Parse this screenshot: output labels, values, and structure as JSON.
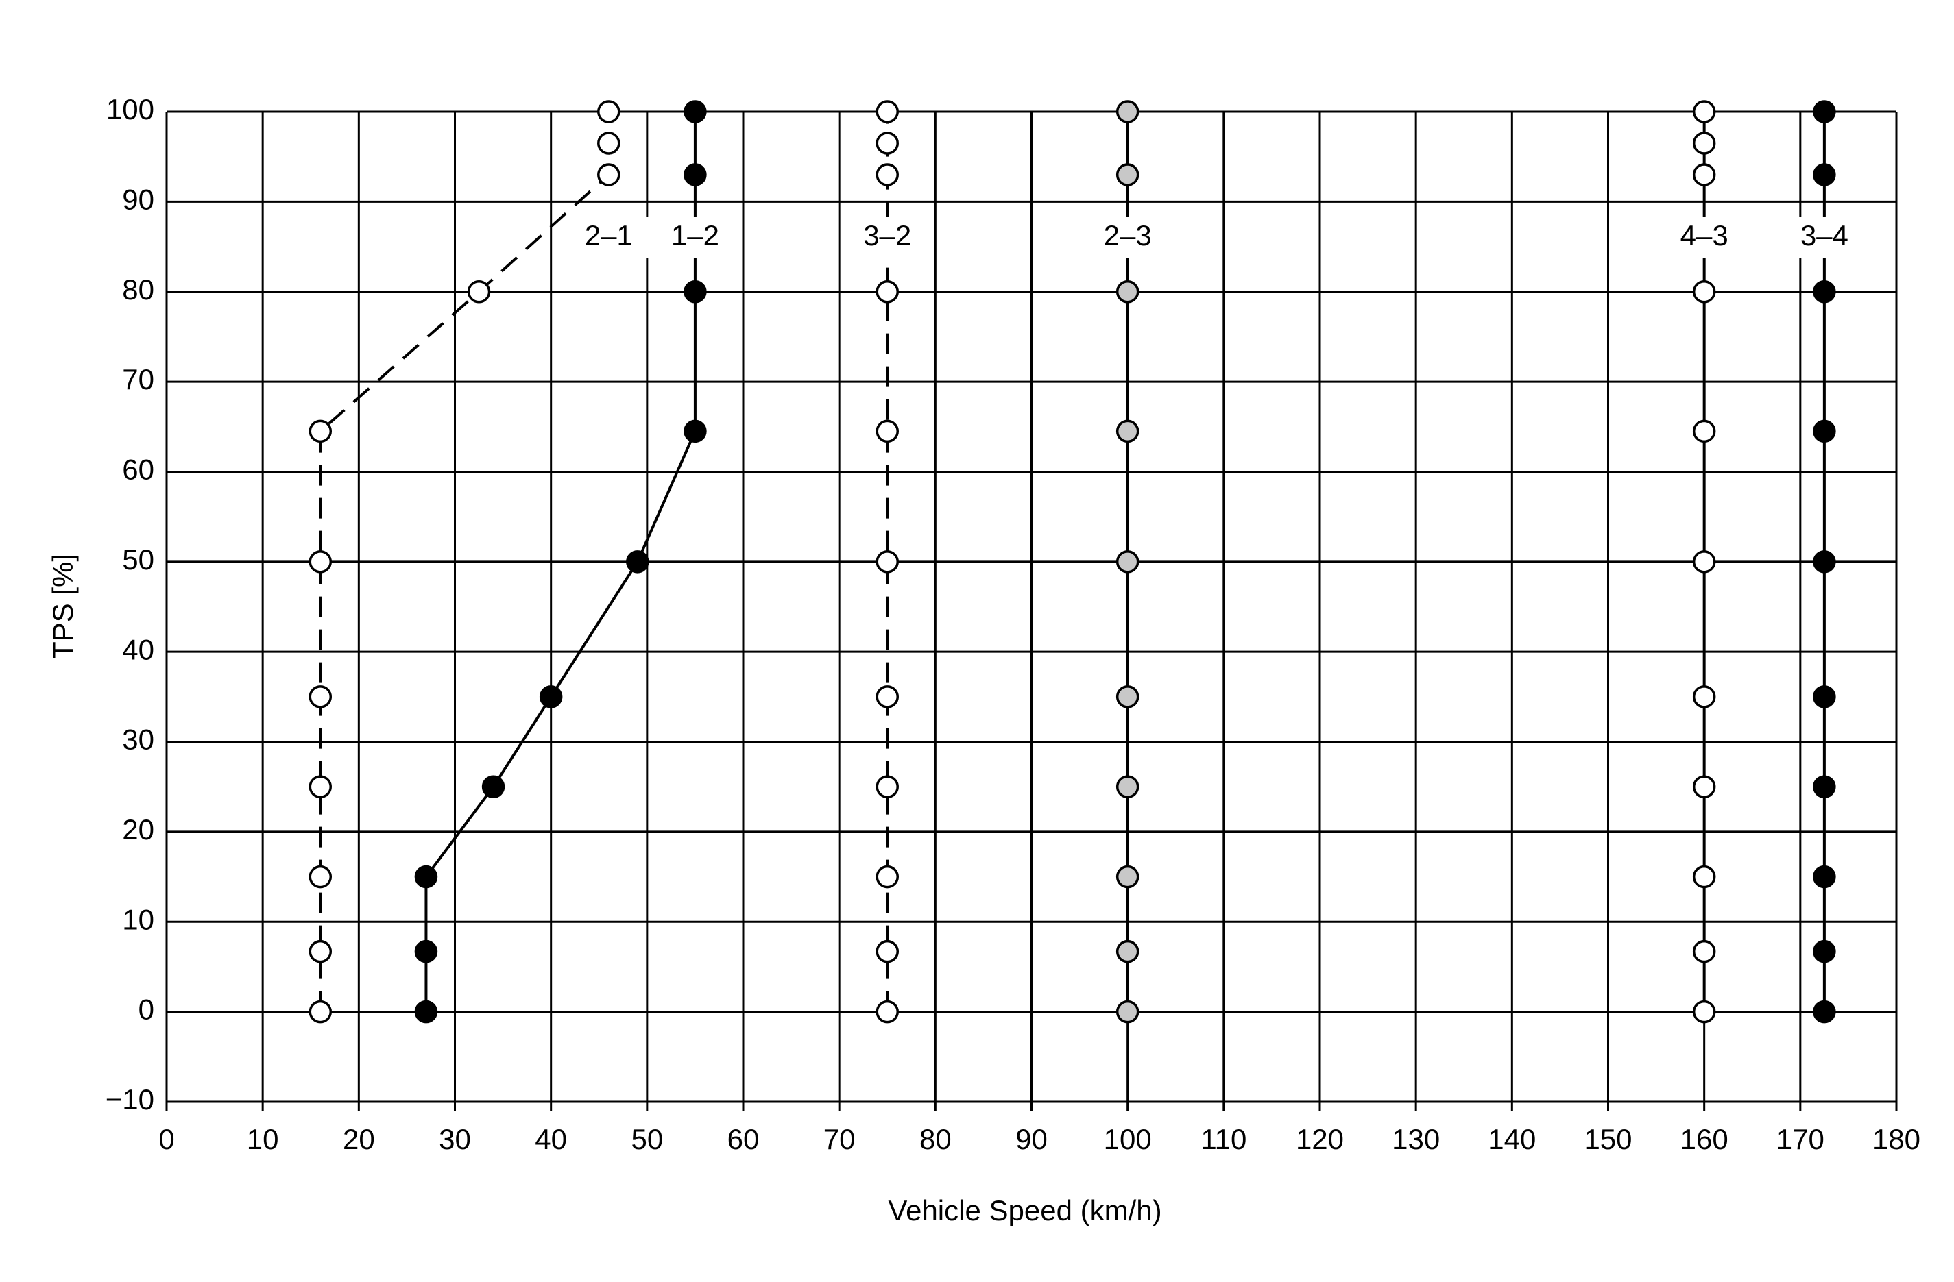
{
  "chart_data": {
    "type": "line",
    "xlabel": "Vehicle Speed (km/h)",
    "ylabel": "TPS [%]",
    "xlim": [
      0,
      180
    ],
    "ylim": [
      -10,
      100
    ],
    "xticks": [
      0,
      10,
      20,
      30,
      40,
      50,
      60,
      70,
      80,
      90,
      100,
      110,
      120,
      130,
      140,
      150,
      160,
      170,
      180
    ],
    "yticks": [
      {
        "value": -10,
        "label": "−10"
      },
      0,
      10,
      20,
      30,
      40,
      50,
      60,
      70,
      80,
      90,
      100
    ],
    "grid": true,
    "series": [
      {
        "name": "2–1",
        "color": "#000000",
        "marker_fill": "#ffffff",
        "dashed": true,
        "x": [
          16,
          16,
          16,
          16,
          16,
          16,
          16,
          32.5,
          46,
          46,
          46
        ],
        "values": [
          0,
          6.7,
          15,
          25,
          35,
          50,
          64.5,
          80,
          93,
          96.5,
          100
        ]
      },
      {
        "name": "1–2",
        "color": "#000000",
        "marker_fill": "#000000",
        "dashed": false,
        "x": [
          27,
          27,
          27,
          34,
          40,
          49,
          55,
          55,
          55,
          55
        ],
        "values": [
          0,
          6.7,
          15,
          25,
          35,
          50,
          64.5,
          80,
          93,
          100
        ]
      },
      {
        "name": "3–2",
        "color": "#000000",
        "marker_fill": "#ffffff",
        "dashed": true,
        "x": [
          75,
          75,
          75,
          75,
          75,
          75,
          75,
          75,
          75,
          75,
          75
        ],
        "values": [
          0,
          6.7,
          15,
          25,
          35,
          50,
          64.5,
          80,
          93,
          96.5,
          100
        ]
      },
      {
        "name": "2–3",
        "color": "#000000",
        "marker_fill": "#c8c8c8",
        "dashed": false,
        "x": [
          100,
          100,
          100,
          100,
          100,
          100,
          100,
          100,
          100,
          100
        ],
        "values": [
          0,
          6.7,
          15,
          25,
          35,
          50,
          64.5,
          80,
          93,
          100
        ]
      },
      {
        "name": "4–3",
        "color": "#000000",
        "marker_fill": "#ffffff",
        "dashed": false,
        "x": [
          160,
          160,
          160,
          160,
          160,
          160,
          160,
          160,
          160,
          160,
          160
        ],
        "values": [
          0,
          6.7,
          15,
          25,
          35,
          50,
          64.5,
          80,
          93,
          96.5,
          100
        ]
      },
      {
        "name": "3–4",
        "color": "#000000",
        "marker_fill": "#000000",
        "dashed": false,
        "x": [
          172.5,
          172.5,
          172.5,
          172.5,
          172.5,
          172.5,
          172.5,
          172.5,
          172.5,
          172.5
        ],
        "values": [
          0,
          6.7,
          15,
          25,
          35,
          50,
          64.5,
          80,
          93,
          100
        ]
      }
    ]
  }
}
